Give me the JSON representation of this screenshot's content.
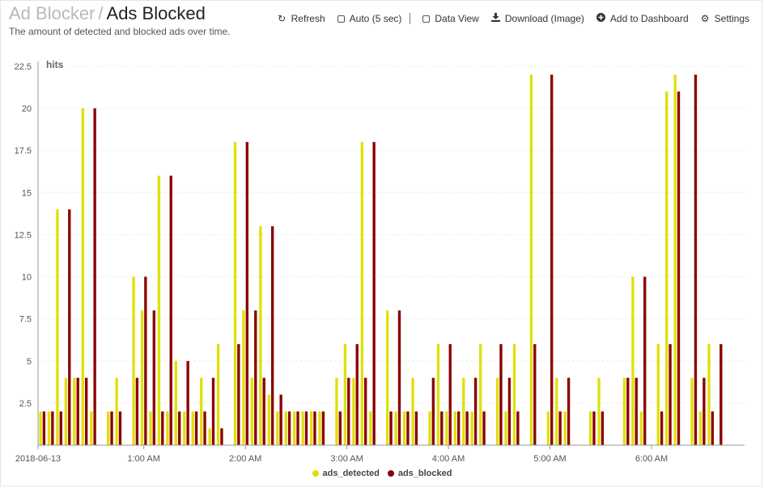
{
  "header": {
    "breadcrumb_parent": "Ad Blocker",
    "separator": "/",
    "title": "Ads Blocked",
    "subtitle": "The amount of detected and blocked ads over time."
  },
  "toolbar": {
    "refresh": {
      "label": "Refresh",
      "icon": "refresh-icon"
    },
    "auto": {
      "label": "Auto (5 sec)",
      "checked": false
    },
    "data_view": {
      "label": "Data View",
      "checked": false
    },
    "download": {
      "label": "Download (Image)",
      "icon": "download-icon"
    },
    "add_dashboard": {
      "label": "Add to Dashboard",
      "icon": "plus-circle-icon"
    },
    "settings": {
      "label": "Settings",
      "icon": "gear-icon"
    }
  },
  "chart_data": {
    "type": "bar",
    "ylabel": "hits",
    "ylim": [
      0,
      22.5
    ],
    "yticks": [
      "2.5",
      "5",
      "7.5",
      "10",
      "12.5",
      "15",
      "17.5",
      "20",
      "22.5"
    ],
    "xticks": [
      {
        "label": "2018-06-13",
        "x": 0
      },
      {
        "label": "1:00 AM",
        "x": 12.5
      },
      {
        "label": "2:00 AM",
        "x": 24.5
      },
      {
        "label": "3:00 AM",
        "x": 36.5
      },
      {
        "label": "4:00 AM",
        "x": 48.5
      },
      {
        "label": "5:00 AM",
        "x": 60.5
      },
      {
        "label": "6:00 AM",
        "x": 72.5
      }
    ],
    "x_range": [
      0,
      83.5
    ],
    "x": [
      0,
      1,
      2,
      3,
      4,
      5,
      6,
      8,
      9,
      11,
      12,
      13,
      14,
      15,
      16,
      17,
      18,
      19,
      20,
      21,
      23,
      24,
      25,
      26,
      27,
      28,
      29,
      30,
      31,
      32,
      33,
      35,
      36,
      37,
      38,
      39,
      41,
      42,
      43,
      44,
      46,
      47,
      48,
      49,
      50,
      51,
      52,
      54,
      55,
      56,
      58,
      60,
      61,
      62,
      65,
      66,
      69,
      70,
      71,
      73,
      74,
      75,
      77,
      78,
      79,
      80,
      81,
      82
    ],
    "series": [
      {
        "name": "ads_detected",
        "color": "#e0e00a",
        "values": [
          2,
          2,
          14,
          4,
          4,
          20,
          2,
          2,
          4,
          10,
          8,
          2,
          16,
          2,
          5,
          2,
          2,
          4,
          1,
          6,
          18,
          8,
          4,
          13,
          3,
          2,
          2,
          2,
          2,
          2,
          2,
          4,
          6,
          4,
          18,
          2,
          8,
          2,
          2,
          4,
          2,
          6,
          2,
          2,
          4,
          2,
          6,
          4,
          2,
          6,
          22,
          2,
          4,
          2,
          2,
          4,
          4,
          10,
          2,
          6,
          21,
          22,
          4,
          2,
          6,
          0,
          0,
          0
        ]
      },
      {
        "name": "ads_blocked",
        "color": "#8b0000",
        "values": [
          2,
          2,
          2,
          14,
          4,
          4,
          20,
          2,
          2,
          4,
          10,
          8,
          2,
          16,
          2,
          5,
          2,
          2,
          4,
          1,
          6,
          18,
          8,
          4,
          13,
          3,
          2,
          2,
          2,
          2,
          2,
          2,
          4,
          6,
          4,
          18,
          2,
          8,
          2,
          2,
          4,
          2,
          6,
          2,
          2,
          4,
          2,
          6,
          4,
          2,
          6,
          22,
          2,
          4,
          2,
          2,
          4,
          4,
          10,
          2,
          6,
          21,
          22,
          4,
          2,
          6,
          0,
          0
        ]
      }
    ],
    "legend_position": "bottom-center",
    "grid": true
  }
}
